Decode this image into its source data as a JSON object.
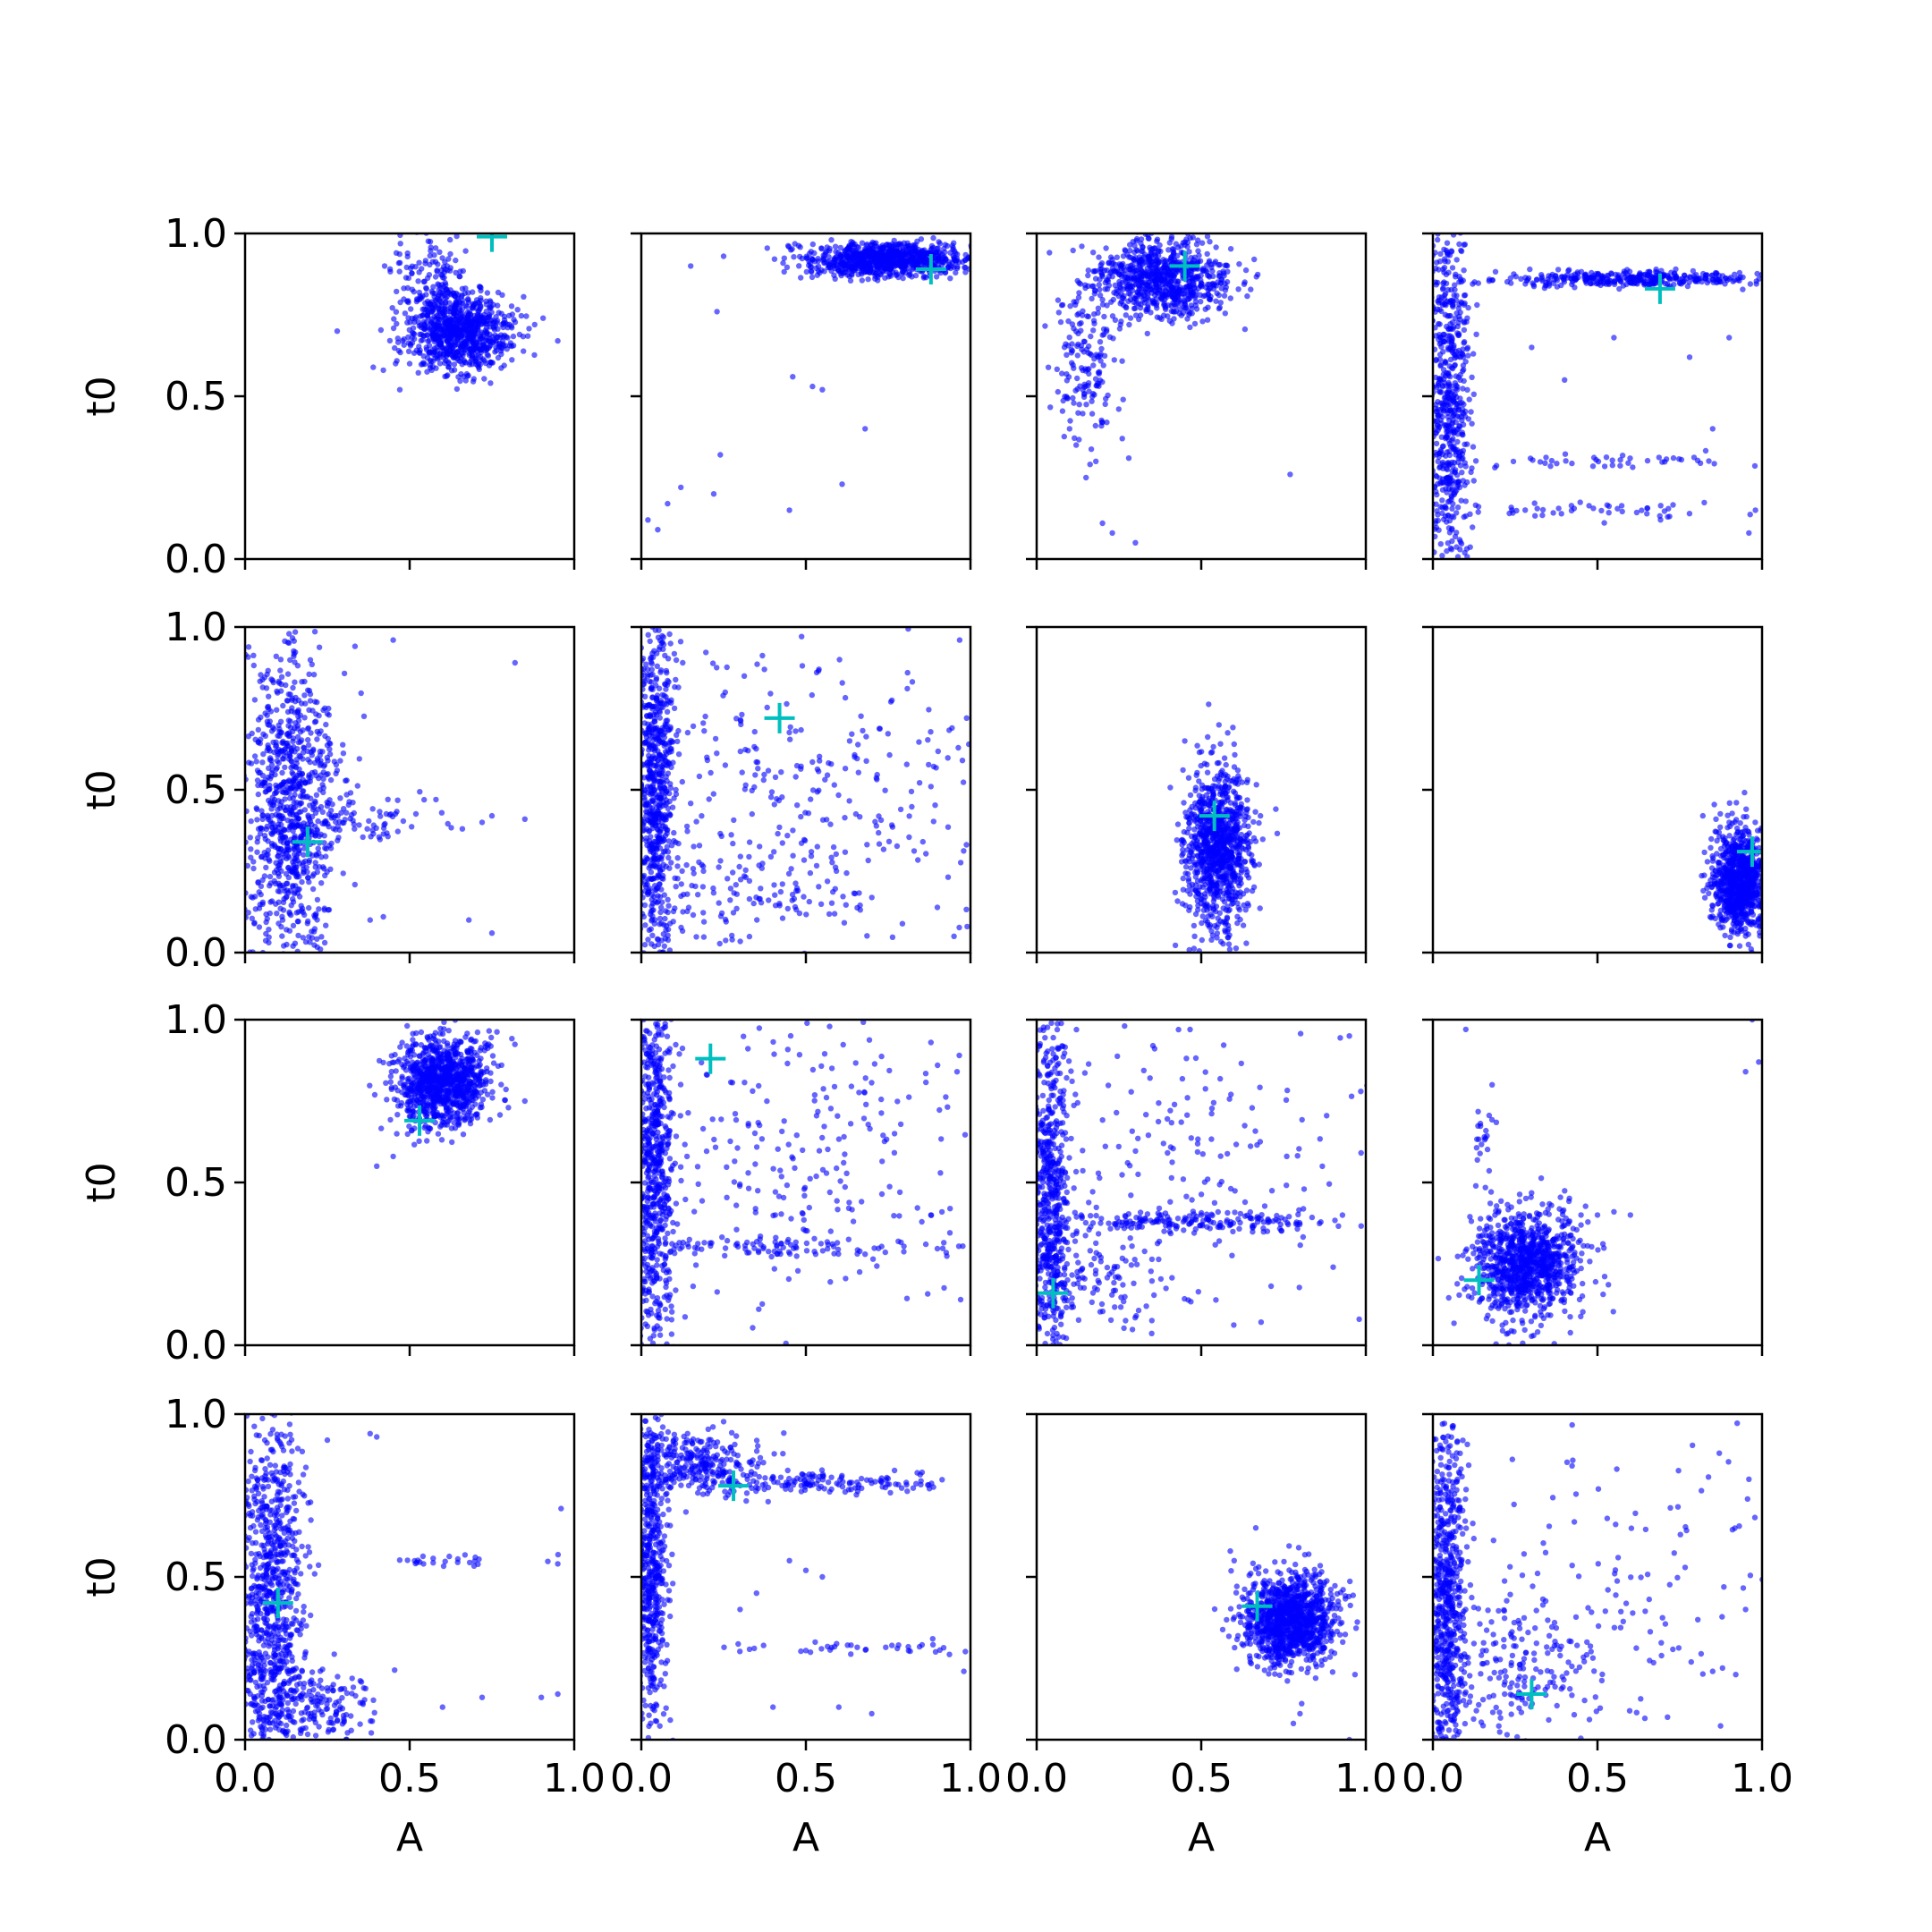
{
  "chart_data": {
    "type": "scatter",
    "grid": false,
    "layout": "4x4 small multiples, shared axes",
    "xlabel": "A",
    "ylabel": "t0",
    "xlim": [
      0,
      1
    ],
    "ylim": [
      0,
      1
    ],
    "xticks": [
      "0.0",
      "0.5",
      "1.0"
    ],
    "yticks": [
      "0.0",
      "0.5",
      "1.0"
    ],
    "point_color": "#0000ff",
    "marker_color": "#00bfbf",
    "panels": [
      {
        "marker": [
          0.75,
          0.99
        ],
        "clusters": [
          {
            "x": 0.65,
            "y": 0.7,
            "sx": 0.08,
            "sy": 0.06,
            "n": 850
          },
          {
            "x": 0.56,
            "y": 0.86,
            "sx": 0.05,
            "sy": 0.08,
            "n": 130
          }
        ],
        "scatter": [
          [
            0.28,
            0.7
          ],
          [
            0.42,
            0.58
          ],
          [
            0.47,
            0.52
          ],
          [
            0.88,
            0.72
          ],
          [
            0.95,
            0.67
          ],
          [
            0.5,
            0.6
          ]
        ]
      },
      {
        "marker": [
          0.88,
          0.89
        ],
        "clusters": [
          {
            "x": 0.75,
            "y": 0.92,
            "sx": 0.13,
            "sy": 0.025,
            "n": 900
          }
        ],
        "scatter": [
          [
            0.02,
            0.12
          ],
          [
            0.08,
            0.17
          ],
          [
            0.12,
            0.22
          ],
          [
            0.05,
            0.09
          ],
          [
            0.23,
            0.76
          ],
          [
            0.24,
            0.32
          ],
          [
            0.22,
            0.2
          ],
          [
            0.46,
            0.56
          ],
          [
            0.52,
            0.53
          ],
          [
            0.55,
            0.52
          ],
          [
            0.68,
            0.4
          ],
          [
            0.45,
            0.15
          ],
          [
            0.61,
            0.23
          ],
          [
            0.15,
            0.9
          ],
          [
            0.25,
            0.93
          ]
        ]
      },
      {
        "marker": [
          0.45,
          0.9
        ],
        "clusters": [
          {
            "x": 0.38,
            "y": 0.86,
            "sx": 0.1,
            "sy": 0.06,
            "n": 800
          },
          {
            "x": 0.15,
            "y": 0.6,
            "sx": 0.05,
            "sy": 0.12,
            "n": 160
          }
        ],
        "scatter": [
          [
            0.1,
            0.4
          ],
          [
            0.12,
            0.35
          ],
          [
            0.15,
            0.25
          ],
          [
            0.2,
            0.11
          ],
          [
            0.23,
            0.08
          ],
          [
            0.3,
            0.05
          ],
          [
            0.26,
            0.37
          ],
          [
            0.28,
            0.31
          ],
          [
            0.77,
            0.26
          ],
          [
            0.2,
            0.42
          ],
          [
            0.18,
            0.3
          ]
        ]
      },
      {
        "marker": [
          0.69,
          0.83
        ],
        "clusters": [
          {
            "x": 0.05,
            "y": 0.5,
            "sx": 0.03,
            "sy": 0.3,
            "n": 650
          },
          {
            "x": 0.6,
            "y": 0.86,
            "sx": 0.22,
            "sy": 0.012,
            "n": 360
          },
          {
            "x": 0.5,
            "y": 0.3,
            "sx": 0.25,
            "sy": 0.01,
            "n": 50
          },
          {
            "x": 0.5,
            "y": 0.15,
            "sx": 0.25,
            "sy": 0.012,
            "n": 55
          }
        ],
        "scatter": [
          [
            0.3,
            0.65
          ],
          [
            0.55,
            0.68
          ],
          [
            0.78,
            0.62
          ],
          [
            0.9,
            0.68
          ],
          [
            0.85,
            0.4
          ],
          [
            0.4,
            0.55
          ],
          [
            0.98,
            0.15
          ],
          [
            0.96,
            0.08
          ]
        ]
      },
      {
        "marker": [
          0.19,
          0.34
        ],
        "clusters": [
          {
            "x": 0.14,
            "y": 0.45,
            "sx": 0.07,
            "sy": 0.25,
            "n": 900
          },
          {
            "x": 0.35,
            "y": 0.4,
            "sx": 0.12,
            "sy": 0.04,
            "n": 70
          }
        ],
        "scatter": [
          [
            0.66,
            0.38
          ],
          [
            0.72,
            0.4
          ],
          [
            0.75,
            0.42
          ],
          [
            0.85,
            0.41
          ],
          [
            0.82,
            0.89
          ],
          [
            0.45,
            0.96
          ],
          [
            0.38,
            0.1
          ],
          [
            0.42,
            0.11
          ],
          [
            0.75,
            0.06
          ],
          [
            0.68,
            0.1
          ],
          [
            0.58,
            0.47
          ]
        ]
      },
      {
        "marker": [
          0.42,
          0.72
        ],
        "clusters": [
          {
            "x": 0.04,
            "y": 0.5,
            "sx": 0.03,
            "sy": 0.3,
            "n": 750
          },
          {
            "x": 0.5,
            "y": 0.5,
            "sx": 0.3,
            "sy": 0.28,
            "n": 320
          },
          {
            "x": 0.3,
            "y": 0.2,
            "sx": 0.2,
            "sy": 0.08,
            "n": 120
          }
        ],
        "scatter": [
          [
            0.88,
            0.51
          ],
          [
            0.95,
            0.05
          ],
          [
            0.99,
            0.08
          ]
        ]
      },
      {
        "marker": [
          0.54,
          0.42
        ],
        "clusters": [
          {
            "x": 0.55,
            "y": 0.32,
            "sx": 0.05,
            "sy": 0.12,
            "n": 1000
          }
        ],
        "scatter": [
          [
            0.45,
            0.65
          ],
          [
            0.6,
            0.64
          ],
          [
            0.68,
            0.42
          ],
          [
            0.48,
            0.05
          ]
        ]
      },
      {
        "marker": [
          0.97,
          0.31
        ],
        "clusters": [
          {
            "x": 0.93,
            "y": 0.22,
            "sx": 0.04,
            "sy": 0.08,
            "n": 900
          }
        ],
        "scatter": [
          [
            0.82,
            0.42
          ],
          [
            0.86,
            0.41
          ]
        ]
      },
      {
        "marker": [
          0.53,
          0.69
        ],
        "clusters": [
          {
            "x": 0.6,
            "y": 0.81,
            "sx": 0.07,
            "sy": 0.07,
            "n": 1000
          }
        ],
        "scatter": [
          [
            0.4,
            0.55
          ],
          [
            0.45,
            0.58
          ],
          [
            0.8,
            0.73
          ],
          [
            0.85,
            0.75
          ]
        ]
      },
      {
        "marker": [
          0.21,
          0.88
        ],
        "clusters": [
          {
            "x": 0.04,
            "y": 0.5,
            "sx": 0.03,
            "sy": 0.3,
            "n": 700
          },
          {
            "x": 0.5,
            "y": 0.55,
            "sx": 0.3,
            "sy": 0.25,
            "n": 260
          },
          {
            "x": 0.45,
            "y": 0.3,
            "sx": 0.25,
            "sy": 0.012,
            "n": 90
          }
        ],
        "scatter": [
          [
            0.97,
            0.14
          ],
          [
            0.88,
            0.4
          ],
          [
            0.9,
            0.86
          ],
          [
            0.88,
            0.93
          ]
        ]
      },
      {
        "marker": [
          0.05,
          0.16
        ],
        "clusters": [
          {
            "x": 0.04,
            "y": 0.45,
            "sx": 0.03,
            "sy": 0.3,
            "n": 650
          },
          {
            "x": 0.45,
            "y": 0.38,
            "sx": 0.25,
            "sy": 0.015,
            "n": 200
          },
          {
            "x": 0.45,
            "y": 0.55,
            "sx": 0.3,
            "sy": 0.25,
            "n": 200
          },
          {
            "x": 0.2,
            "y": 0.2,
            "sx": 0.1,
            "sy": 0.08,
            "n": 100
          }
        ],
        "scatter": [
          [
            0.98,
            0.08
          ],
          [
            0.95,
            0.95
          ]
        ]
      },
      {
        "marker": [
          0.14,
          0.2
        ],
        "clusters": [
          {
            "x": 0.28,
            "y": 0.25,
            "sx": 0.08,
            "sy": 0.08,
            "n": 1000
          },
          {
            "x": 0.15,
            "y": 0.65,
            "sx": 0.02,
            "sy": 0.05,
            "n": 20
          }
        ],
        "scatter": [
          [
            0.1,
            0.97
          ],
          [
            0.18,
            0.8
          ],
          [
            0.45,
            0.4
          ],
          [
            0.5,
            0.4
          ],
          [
            0.55,
            0.41
          ],
          [
            0.6,
            0.4
          ],
          [
            0.97,
            1.0
          ],
          [
            0.99,
            0.87
          ],
          [
            0.95,
            0.84
          ]
        ]
      },
      {
        "marker": [
          0.1,
          0.42
        ],
        "clusters": [
          {
            "x": 0.08,
            "y": 0.45,
            "sx": 0.05,
            "sy": 0.28,
            "n": 850
          },
          {
            "x": 0.2,
            "y": 0.1,
            "sx": 0.1,
            "sy": 0.06,
            "n": 200
          },
          {
            "x": 0.65,
            "y": 0.55,
            "sx": 0.12,
            "sy": 0.01,
            "n": 25
          }
        ],
        "scatter": [
          [
            0.25,
            0.92
          ],
          [
            0.38,
            0.94
          ],
          [
            0.4,
            0.93
          ],
          [
            0.96,
            0.71
          ],
          [
            0.95,
            0.54
          ],
          [
            0.9,
            0.13
          ],
          [
            0.95,
            0.14
          ],
          [
            0.72,
            0.13
          ],
          [
            0.6,
            0.1
          ]
        ]
      },
      {
        "marker": [
          0.28,
          0.78
        ],
        "clusters": [
          {
            "x": 0.03,
            "y": 0.55,
            "sx": 0.025,
            "sy": 0.28,
            "n": 550
          },
          {
            "x": 0.15,
            "y": 0.85,
            "sx": 0.1,
            "sy": 0.05,
            "n": 300
          },
          {
            "x": 0.55,
            "y": 0.79,
            "sx": 0.22,
            "sy": 0.015,
            "n": 160
          },
          {
            "x": 0.6,
            "y": 0.28,
            "sx": 0.2,
            "sy": 0.01,
            "n": 40
          }
        ],
        "scatter": [
          [
            0.45,
            0.55
          ],
          [
            0.5,
            0.52
          ],
          [
            0.55,
            0.5
          ],
          [
            0.35,
            0.45
          ],
          [
            0.3,
            0.4
          ],
          [
            0.98,
            0.21
          ],
          [
            0.4,
            0.1
          ],
          [
            0.6,
            0.1
          ],
          [
            0.7,
            0.08
          ]
        ]
      },
      {
        "marker": [
          0.67,
          0.41
        ],
        "clusters": [
          {
            "x": 0.77,
            "y": 0.37,
            "sx": 0.07,
            "sy": 0.07,
            "n": 1100
          }
        ],
        "scatter": [
          [
            0.78,
            0.05
          ],
          [
            0.8,
            0.08
          ],
          [
            0.95,
            0.0
          ],
          [
            0.6,
            0.55
          ]
        ]
      },
      {
        "marker": [
          0.3,
          0.14
        ],
        "clusters": [
          {
            "x": 0.04,
            "y": 0.45,
            "sx": 0.03,
            "sy": 0.28,
            "n": 650
          },
          {
            "x": 0.25,
            "y": 0.2,
            "sx": 0.15,
            "sy": 0.12,
            "n": 220
          },
          {
            "x": 0.55,
            "y": 0.5,
            "sx": 0.25,
            "sy": 0.25,
            "n": 120
          }
        ],
        "scatter": [
          [
            0.85,
            0.21
          ],
          [
            0.88,
            0.22
          ],
          [
            0.92,
            0.2
          ],
          [
            0.95,
            0.4
          ],
          [
            0.87,
            0.88
          ],
          [
            0.96,
            0.8
          ]
        ]
      }
    ]
  }
}
